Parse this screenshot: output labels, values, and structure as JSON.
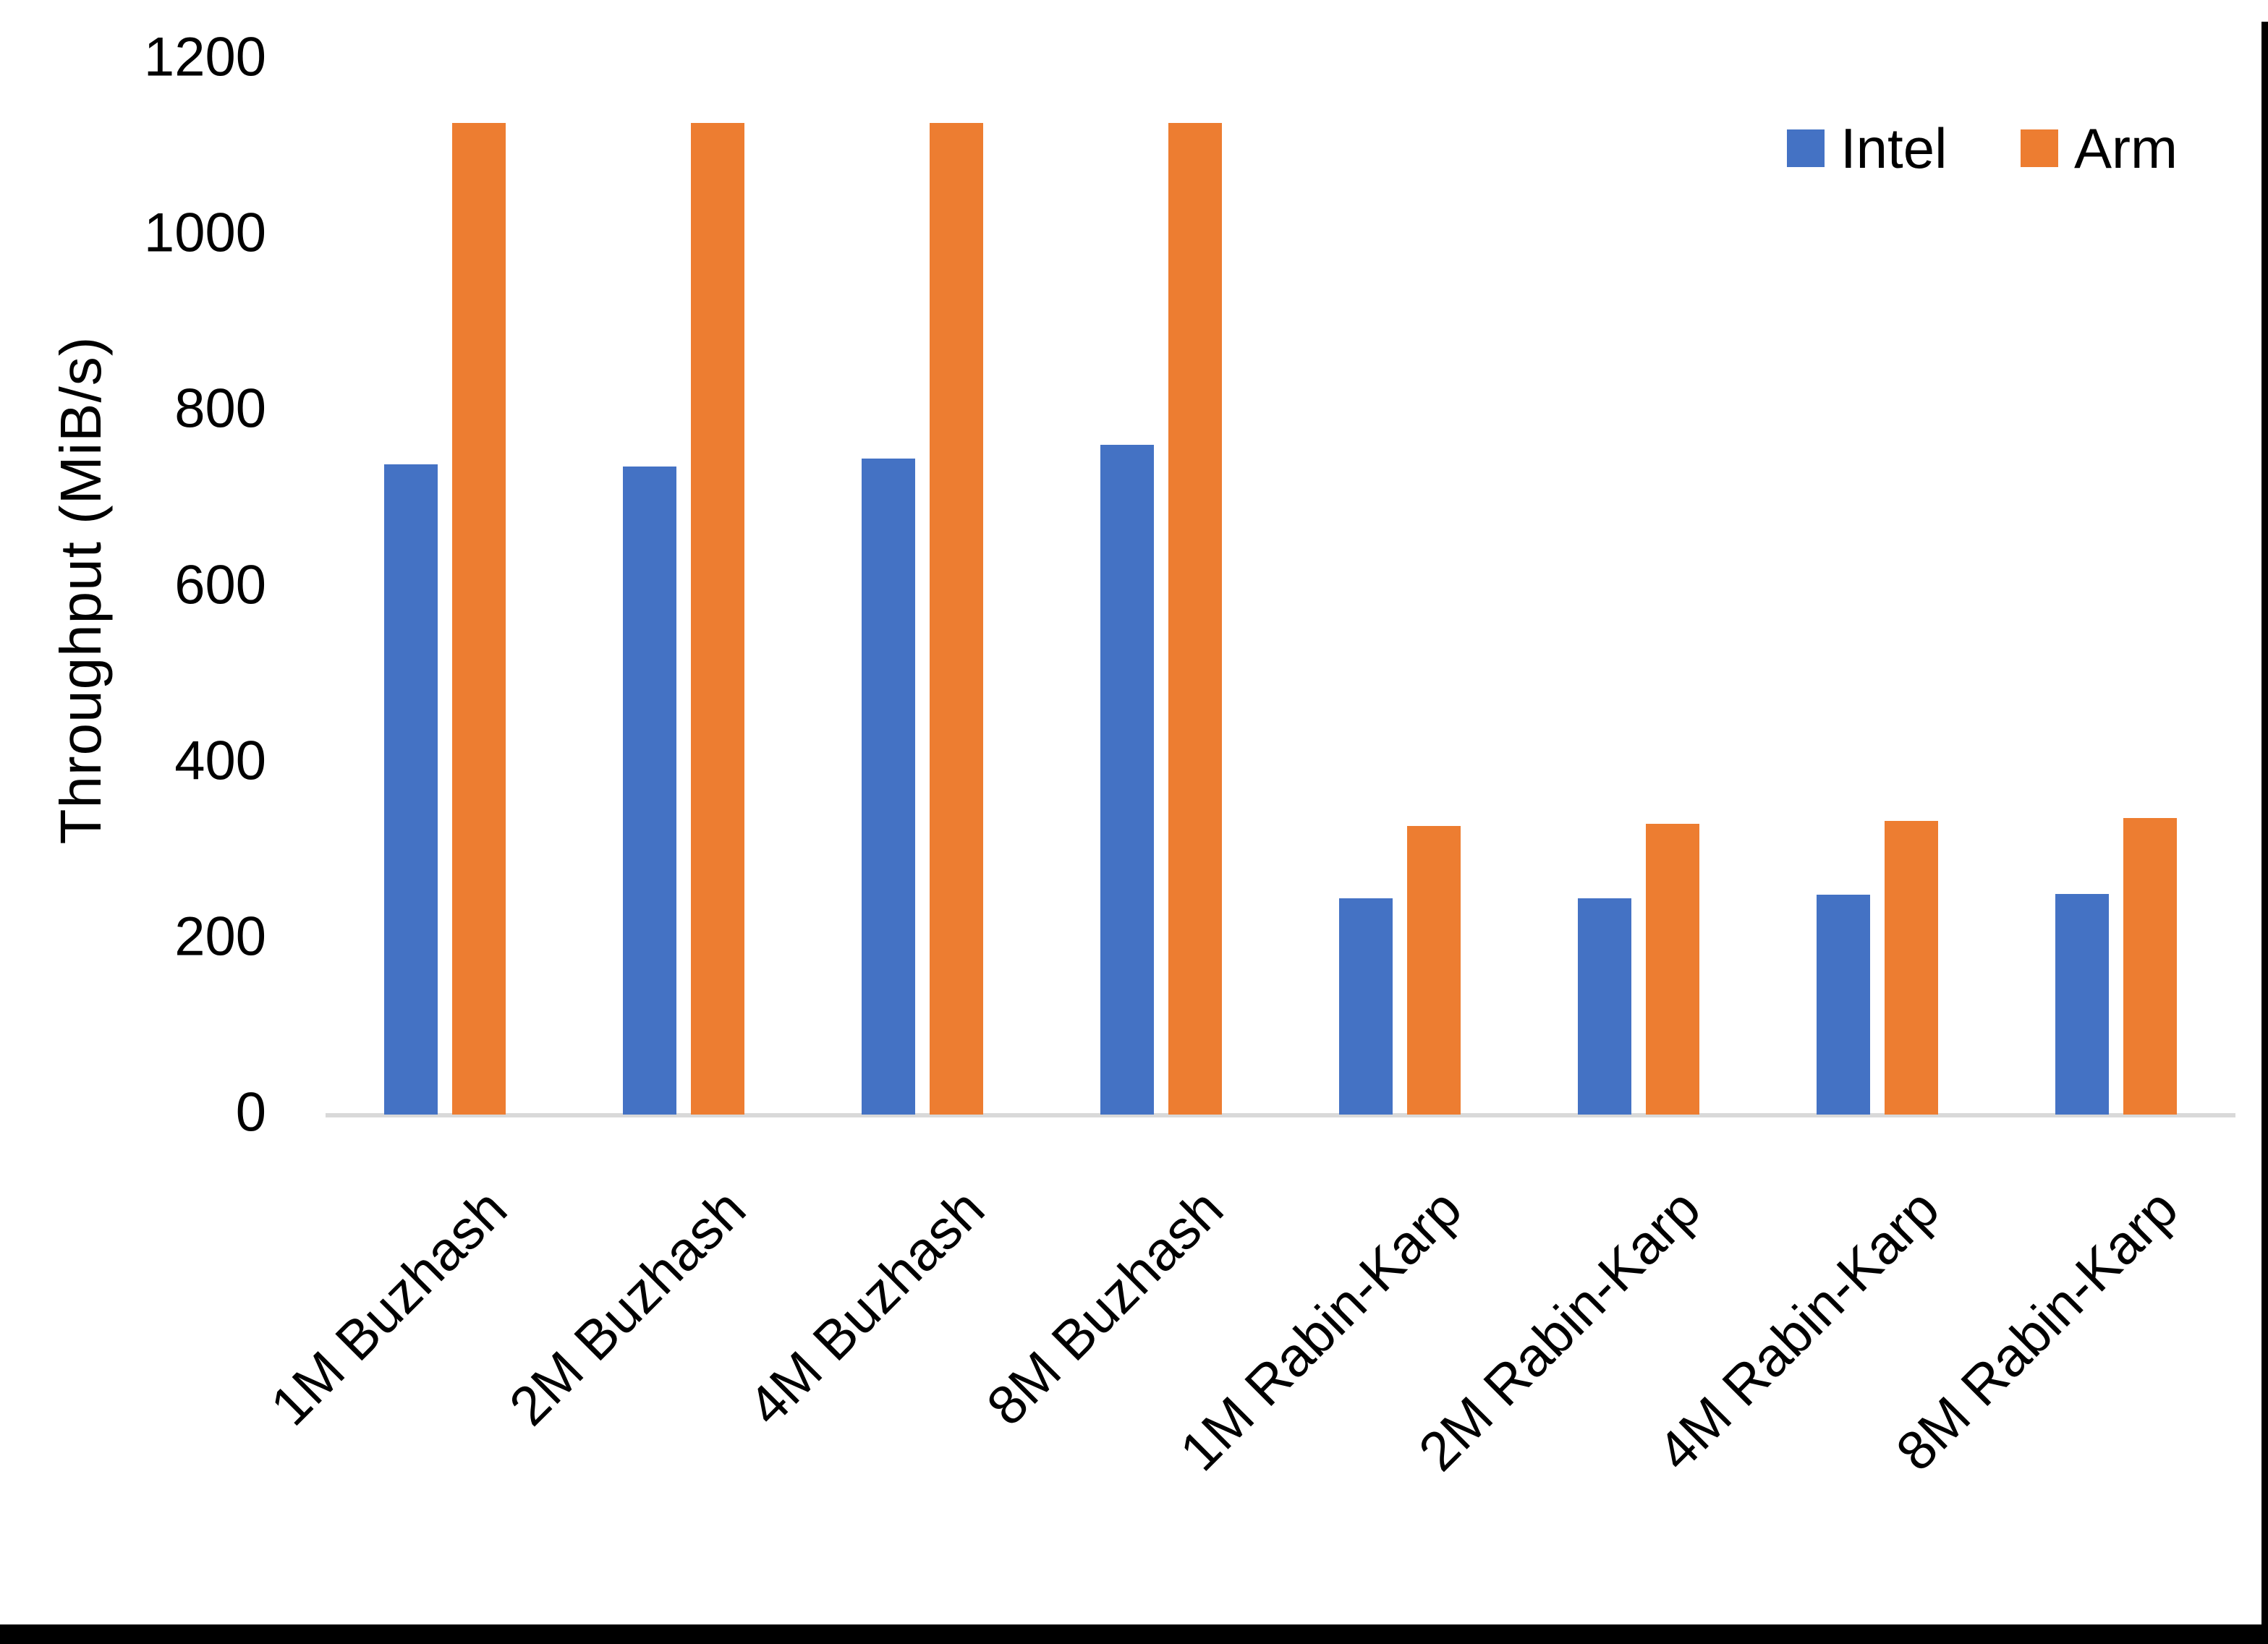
{
  "chart_data": {
    "type": "bar",
    "title": "",
    "ylabel": "Throughput (MiB/s)",
    "xlabel": "",
    "ylim": [
      0,
      1200
    ],
    "ytick_step": 200,
    "grid": false,
    "legend_position": "top-right",
    "categories": [
      "1M Buzhash",
      "2M Buzhash",
      "4M Buzhash",
      "8M Buzhash",
      "1M Rabin-Karp",
      "2M Rabin-Karp",
      "4M Rabin-Karp",
      "8M Rabin-Karp"
    ],
    "series": [
      {
        "name": "Intel",
        "color": "#4472C4",
        "values": [
          739,
          737,
          746,
          762,
          246,
          246,
          250,
          251
        ]
      },
      {
        "name": "Arm",
        "color": "#ED7D31",
        "values": [
          1128,
          1128,
          1128,
          1128,
          328,
          331,
          334,
          337
        ]
      }
    ],
    "axis_line_color": "#D9D9D9",
    "text_color": "#000000"
  }
}
